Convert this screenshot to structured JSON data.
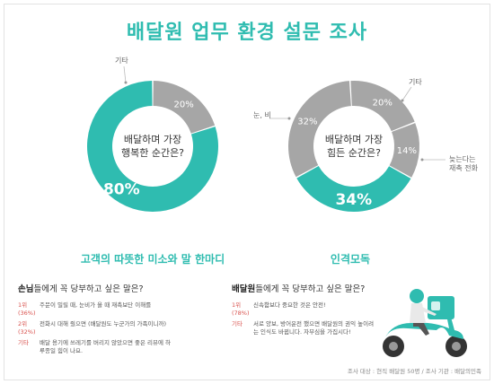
{
  "title": "배달원 업무 환경 설문 조사",
  "colors": {
    "accent": "#2fbcb0",
    "gray": "#a6a6a6",
    "rank": "#d9534f"
  },
  "chart_data": [
    {
      "type": "pie",
      "donut": true,
      "title": "배달하며 가장 행복한 순간은?",
      "labels": [
        "고객의 따뜻한 미소와 말 한마디",
        "기타"
      ],
      "values": [
        80,
        20
      ],
      "value_labels": [
        "80%",
        "20%"
      ],
      "caption": "고객의 따뜻한 미소와 말 한마디"
    },
    {
      "type": "pie",
      "donut": true,
      "title": "배달하며 가장 힘든 순간은?",
      "labels": [
        "인격모독",
        "눈, 비",
        "기타",
        "늦는다는 재촉 전화"
      ],
      "values": [
        34,
        32,
        20,
        14
      ],
      "value_labels": [
        "34%",
        "32%",
        "20%",
        "14%"
      ],
      "caption": "인격모독"
    }
  ],
  "callouts": {
    "left_other": "기타",
    "right_snow": "눈, 비",
    "right_other": "기타",
    "right_late_1": "늦는다는",
    "right_late_2": "재촉 전화"
  },
  "customer_panel": {
    "heading_bold": "손님",
    "heading_rest": "들에게 꼭 당부하고 싶은 말은?",
    "items": [
      {
        "rank": "1위 (36%)",
        "text": "주문이 밀릴 때, 눈비가 올 때 재촉보단 이해를"
      },
      {
        "rank": "2위 (32%)",
        "text": "전화시 대해 줬으면 (배달원도 누군가의 가족이니까)"
      },
      {
        "rank": "기타",
        "text": "배달 용기에 쓰레기를 버리지 않았으면 좋은 리뷰에 하루종일 힘이 나요."
      }
    ]
  },
  "rider_panel": {
    "heading_bold": "배달원",
    "heading_rest": "들에게 꼭 당부하고 싶은 말은?",
    "items": [
      {
        "rank": "1위 (78%)",
        "text": "신속함보다 중요한 것은 안전!"
      },
      {
        "rank": "기타",
        "text": "서로 양보, 방어운전 했으면 배달원의 권익 높이려는 인식도 바뀝니다. 자부심을 가집시다!"
      }
    ]
  },
  "source": "조사 대상 : 현직 배달원 50명 / 조사 기관 : 배달의민족"
}
